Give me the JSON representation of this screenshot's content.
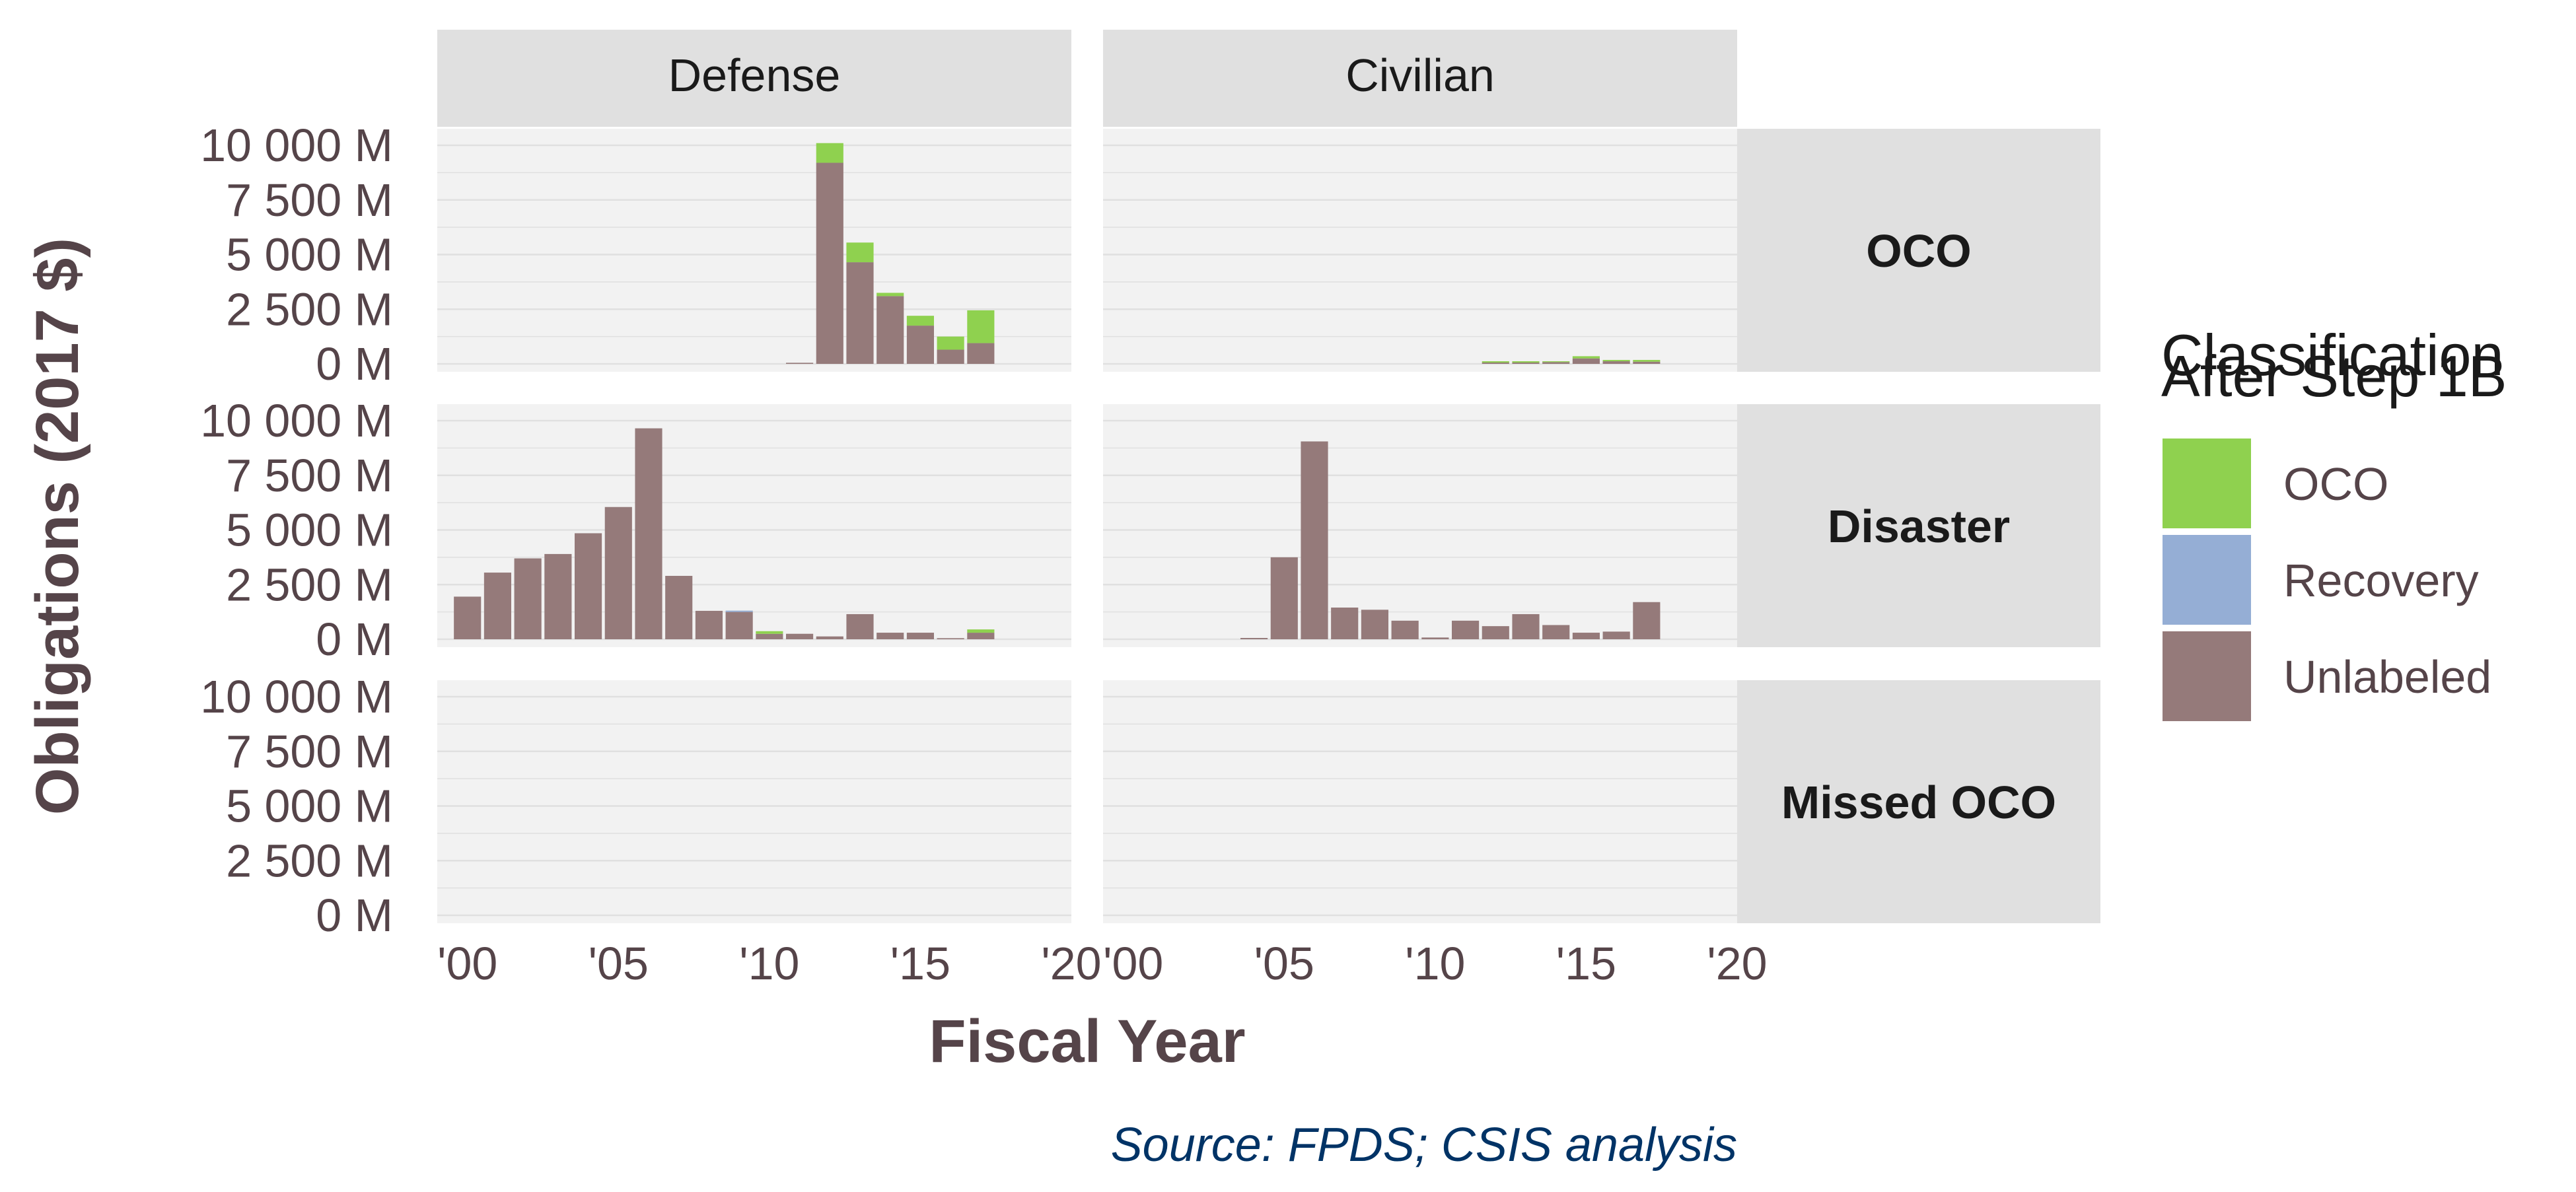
{
  "chart_data": {
    "type": "bar",
    "stacked": true,
    "faceted": true,
    "xlabel": "Fiscal Year",
    "ylabel": "Obligations (2017 $)",
    "caption": "Source: FPDS; CSIS analysis",
    "column_facets": [
      "Defense",
      "Civilian"
    ],
    "row_facets": [
      "OCO",
      "Disaster",
      "Missed OCO"
    ],
    "x_range": [
      1999,
      2020
    ],
    "x_ticks": [
      2000,
      2005,
      2010,
      2015,
      2020
    ],
    "x_tick_labels": [
      "'00",
      "'05",
      "'10",
      "'15",
      "'20"
    ],
    "ylim": [
      0,
      10000
    ],
    "y_ticks": [
      0,
      2500,
      5000,
      7500,
      10000
    ],
    "y_tick_labels": [
      "0 M",
      "2 500 M",
      "5 000 M",
      "7 500 M",
      "10 000 M"
    ],
    "grid": true,
    "legend": {
      "title_lines": [
        "Classification",
        "After Step 1B"
      ],
      "position": "right",
      "items": [
        {
          "name": "OCO",
          "color": "#8fd14f"
        },
        {
          "name": "Recovery",
          "color": "#95aed5"
        },
        {
          "name": "Unlabeled",
          "color": "#957a7a"
        }
      ]
    },
    "panels": [
      {
        "column": "Defense",
        "row": "OCO",
        "bars": [
          {
            "x": 2011,
            "Unlabeled": 50,
            "OCO": 0
          },
          {
            "x": 2012,
            "Unlabeled": 9200,
            "OCO": 900
          },
          {
            "x": 2013,
            "Unlabeled": 4650,
            "OCO": 900
          },
          {
            "x": 2014,
            "Unlabeled": 3100,
            "OCO": 150
          },
          {
            "x": 2015,
            "Unlabeled": 1750,
            "OCO": 450
          },
          {
            "x": 2016,
            "Unlabeled": 650,
            "OCO": 600
          },
          {
            "x": 2017,
            "Unlabeled": 950,
            "OCO": 1500
          }
        ]
      },
      {
        "column": "Civilian",
        "row": "OCO",
        "bars": [
          {
            "x": 2012,
            "Unlabeled": 60,
            "OCO": 60
          },
          {
            "x": 2013,
            "Unlabeled": 60,
            "OCO": 60
          },
          {
            "x": 2014,
            "Unlabeled": 80,
            "OCO": 40
          },
          {
            "x": 2015,
            "Unlabeled": 250,
            "OCO": 100
          },
          {
            "x": 2016,
            "Unlabeled": 120,
            "OCO": 60
          },
          {
            "x": 2017,
            "Unlabeled": 100,
            "OCO": 80
          }
        ]
      },
      {
        "column": "Defense",
        "row": "Disaster",
        "bars": [
          {
            "x": 2000,
            "Unlabeled": 1950,
            "OCO": 0
          },
          {
            "x": 2001,
            "Unlabeled": 3050,
            "OCO": 0
          },
          {
            "x": 2002,
            "Unlabeled": 3700,
            "OCO": 0
          },
          {
            "x": 2003,
            "Unlabeled": 3900,
            "OCO": 0
          },
          {
            "x": 2004,
            "Unlabeled": 4850,
            "OCO": 0
          },
          {
            "x": 2005,
            "Unlabeled": 6050,
            "OCO": 0
          },
          {
            "x": 2006,
            "Unlabeled": 9650,
            "OCO": 0
          },
          {
            "x": 2007,
            "Unlabeled": 2900,
            "OCO": 0
          },
          {
            "x": 2008,
            "Unlabeled": 1300,
            "OCO": 0
          },
          {
            "x": 2009,
            "Unlabeled": 1250,
            "Recovery": 60,
            "OCO": 0
          },
          {
            "x": 2010,
            "Unlabeled": 250,
            "OCO": 120
          },
          {
            "x": 2011,
            "Unlabeled": 250,
            "OCO": 0
          },
          {
            "x": 2012,
            "Unlabeled": 130,
            "OCO": 0
          },
          {
            "x": 2013,
            "Unlabeled": 1150,
            "OCO": 0
          },
          {
            "x": 2014,
            "Unlabeled": 300,
            "OCO": 0
          },
          {
            "x": 2015,
            "Unlabeled": 300,
            "OCO": 0
          },
          {
            "x": 2016,
            "Unlabeled": 50,
            "OCO": 0
          },
          {
            "x": 2017,
            "Unlabeled": 300,
            "OCO": 150
          }
        ]
      },
      {
        "column": "Civilian",
        "row": "Disaster",
        "bars": [
          {
            "x": 2004,
            "Unlabeled": 60,
            "OCO": 0
          },
          {
            "x": 2005,
            "Unlabeled": 3750,
            "OCO": 0
          },
          {
            "x": 2006,
            "Unlabeled": 9050,
            "OCO": 0
          },
          {
            "x": 2007,
            "Unlabeled": 1450,
            "OCO": 0
          },
          {
            "x": 2008,
            "Unlabeled": 1350,
            "OCO": 0
          },
          {
            "x": 2009,
            "Unlabeled": 850,
            "OCO": 0
          },
          {
            "x": 2010,
            "Unlabeled": 80,
            "OCO": 0
          },
          {
            "x": 2011,
            "Unlabeled": 850,
            "OCO": 0
          },
          {
            "x": 2012,
            "Unlabeled": 600,
            "OCO": 0
          },
          {
            "x": 2013,
            "Unlabeled": 1150,
            "OCO": 0
          },
          {
            "x": 2014,
            "Unlabeled": 650,
            "OCO": 0
          },
          {
            "x": 2015,
            "Unlabeled": 300,
            "OCO": 0
          },
          {
            "x": 2016,
            "Unlabeled": 350,
            "OCO": 0
          },
          {
            "x": 2017,
            "Unlabeled": 1700,
            "OCO": 0
          }
        ]
      },
      {
        "column": "Defense",
        "row": "Missed OCO",
        "bars": []
      },
      {
        "column": "Civilian",
        "row": "Missed OCO",
        "bars": []
      }
    ]
  },
  "colors": {
    "panel_background": "#f2f2f2",
    "strip_background": "#e0e0e0",
    "grid_line": "#e0e0e0",
    "axis_text": "#554449",
    "caption_text": "#003366"
  }
}
